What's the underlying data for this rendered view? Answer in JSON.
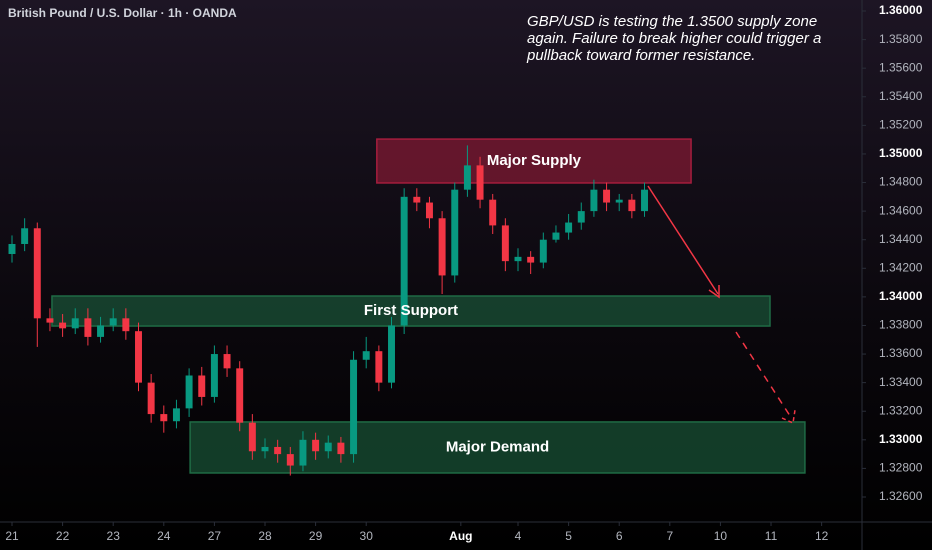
{
  "chart_data": {
    "type": "candlestick",
    "title": "British Pound / U.S. Dollar · 1h · OANDA",
    "annotation_lines": [
      "GBP/USD is testing the 1.3500 supply zone",
      "again. Failure to break higher could trigger a",
      "pullback toward former resistance."
    ],
    "up_color": "#089981",
    "down_color": "#f23645",
    "x": [
      0,
      0.25,
      0.5,
      0.75,
      1,
      1.25,
      1.5,
      1.75,
      2,
      2.25,
      2.5,
      2.75,
      3,
      3.25,
      3.5,
      3.75,
      4,
      4.25,
      4.5,
      4.75,
      5,
      5.25,
      5.5,
      5.75,
      6,
      6.25,
      6.5,
      6.75,
      7,
      7.25,
      7.5,
      7.75,
      8,
      8.25,
      8.5,
      8.75,
      9,
      9.25,
      9.5,
      9.75,
      10,
      10.25,
      10.5,
      10.75,
      11,
      11.25,
      11.5,
      11.75,
      12,
      12.25,
      12.5
    ],
    "open": [
      1.343,
      1.3437,
      1.3448,
      1.3385,
      1.3382,
      1.3378,
      1.3385,
      1.3372,
      1.338,
      1.3385,
      1.3376,
      1.334,
      1.3318,
      1.3313,
      1.3322,
      1.3345,
      1.333,
      1.336,
      1.335,
      1.3312,
      1.3292,
      1.3295,
      1.329,
      1.3282,
      1.33,
      1.3292,
      1.3298,
      1.329,
      1.3356,
      1.3362,
      1.334,
      1.338,
      1.347,
      1.3466,
      1.3455,
      1.3415,
      1.3475,
      1.3492,
      1.3468,
      1.345,
      1.3425,
      1.3428,
      1.3424,
      1.344,
      1.3445,
      1.3452,
      1.346,
      1.3475,
      1.3466,
      1.3468,
      1.346
    ],
    "high": [
      1.3443,
      1.3455,
      1.3452,
      1.3392,
      1.3388,
      1.3392,
      1.3392,
      1.3386,
      1.3392,
      1.3392,
      1.3382,
      1.3346,
      1.3324,
      1.3328,
      1.335,
      1.3351,
      1.3366,
      1.3366,
      1.3355,
      1.3318,
      1.3301,
      1.33,
      1.3295,
      1.3306,
      1.3305,
      1.3303,
      1.3302,
      1.3362,
      1.3372,
      1.3366,
      1.3386,
      1.3476,
      1.3476,
      1.347,
      1.346,
      1.348,
      1.3506,
      1.3498,
      1.3472,
      1.3455,
      1.3434,
      1.3432,
      1.3445,
      1.345,
      1.3458,
      1.3466,
      1.3482,
      1.348,
      1.3472,
      1.3472,
      1.348
    ],
    "low": [
      1.3424,
      1.3432,
      1.3365,
      1.3376,
      1.3372,
      1.3374,
      1.3366,
      1.3368,
      1.3376,
      1.337,
      1.3334,
      1.3312,
      1.3305,
      1.3308,
      1.3316,
      1.3324,
      1.3326,
      1.3344,
      1.3306,
      1.3286,
      1.3287,
      1.3284,
      1.3275,
      1.3278,
      1.3286,
      1.3287,
      1.3284,
      1.3284,
      1.335,
      1.3334,
      1.3336,
      1.3374,
      1.346,
      1.3448,
      1.3402,
      1.341,
      1.347,
      1.3462,
      1.3444,
      1.3418,
      1.3418,
      1.3416,
      1.342,
      1.3438,
      1.344,
      1.3447,
      1.3456,
      1.346,
      1.346,
      1.3455,
      1.3456
    ],
    "close": [
      1.3437,
      1.3448,
      1.3385,
      1.3382,
      1.3378,
      1.3385,
      1.3372,
      1.338,
      1.3385,
      1.3376,
      1.334,
      1.3318,
      1.3313,
      1.3322,
      1.3345,
      1.333,
      1.336,
      1.335,
      1.3312,
      1.3292,
      1.3295,
      1.329,
      1.3282,
      1.33,
      1.3292,
      1.3298,
      1.329,
      1.3356,
      1.3362,
      1.334,
      1.338,
      1.347,
      1.3466,
      1.3455,
      1.3415,
      1.3475,
      1.3492,
      1.3468,
      1.345,
      1.3425,
      1.3428,
      1.3424,
      1.344,
      1.3445,
      1.3452,
      1.346,
      1.3475,
      1.3466,
      1.3468,
      1.346,
      1.3475
    ],
    "zones": [
      {
        "label": "Major Supply",
        "color": "#a51d3d",
        "x": [
          7.21,
          13.42
        ],
        "y": [
          1.34797,
          1.35104
        ]
      },
      {
        "label": "First Support",
        "color": "#1f6b45",
        "x": [
          0.79,
          14.98
        ],
        "y": [
          1.33796,
          1.34006
        ]
      },
      {
        "label": "Major Demand",
        "color": "#1f6b45",
        "x": [
          3.52,
          15.67
        ],
        "y": [
          1.32768,
          1.33125
        ]
      }
    ],
    "xlim": [
      -0.237,
      16.798
    ],
    "ylim": [
      1.32425,
      1.36077
    ],
    "xticks": [
      {
        "value": 0,
        "label": "21"
      },
      {
        "value": 1,
        "label": "22"
      },
      {
        "value": 2,
        "label": "23"
      },
      {
        "value": 3,
        "label": "24"
      },
      {
        "value": 4,
        "label": "27"
      },
      {
        "value": 5,
        "label": "28"
      },
      {
        "value": 6,
        "label": "29"
      },
      {
        "value": 7,
        "label": "30"
      },
      {
        "value": 8.87,
        "label": "Aug"
      },
      {
        "value": 10,
        "label": "4"
      },
      {
        "value": 11,
        "label": "5"
      },
      {
        "value": 12,
        "label": "6"
      },
      {
        "value": 13,
        "label": "7"
      },
      {
        "value": 14,
        "label": "10"
      },
      {
        "value": 15,
        "label": "11"
      },
      {
        "value": 16,
        "label": "12"
      }
    ],
    "yticks": [
      {
        "value": 1.36,
        "label": "1.36000"
      },
      {
        "value": 1.358,
        "label": "1.35800"
      },
      {
        "value": 1.356,
        "label": "1.35600"
      },
      {
        "value": 1.354,
        "label": "1.35400"
      },
      {
        "value": 1.352,
        "label": "1.35200"
      },
      {
        "value": 1.35,
        "label": "1.35000"
      },
      {
        "value": 1.348,
        "label": "1.34800"
      },
      {
        "value": 1.346,
        "label": "1.34600"
      },
      {
        "value": 1.344,
        "label": "1.34400"
      },
      {
        "value": 1.342,
        "label": "1.34200"
      },
      {
        "value": 1.34,
        "label": "1.34000"
      },
      {
        "value": 1.338,
        "label": "1.33800"
      },
      {
        "value": 1.336,
        "label": "1.33600"
      },
      {
        "value": 1.334,
        "label": "1.33400"
      },
      {
        "value": 1.332,
        "label": "1.33200"
      },
      {
        "value": 1.33,
        "label": "1.33000"
      },
      {
        "value": 1.328,
        "label": "1.32800"
      },
      {
        "value": 1.326,
        "label": "1.32600"
      }
    ]
  }
}
